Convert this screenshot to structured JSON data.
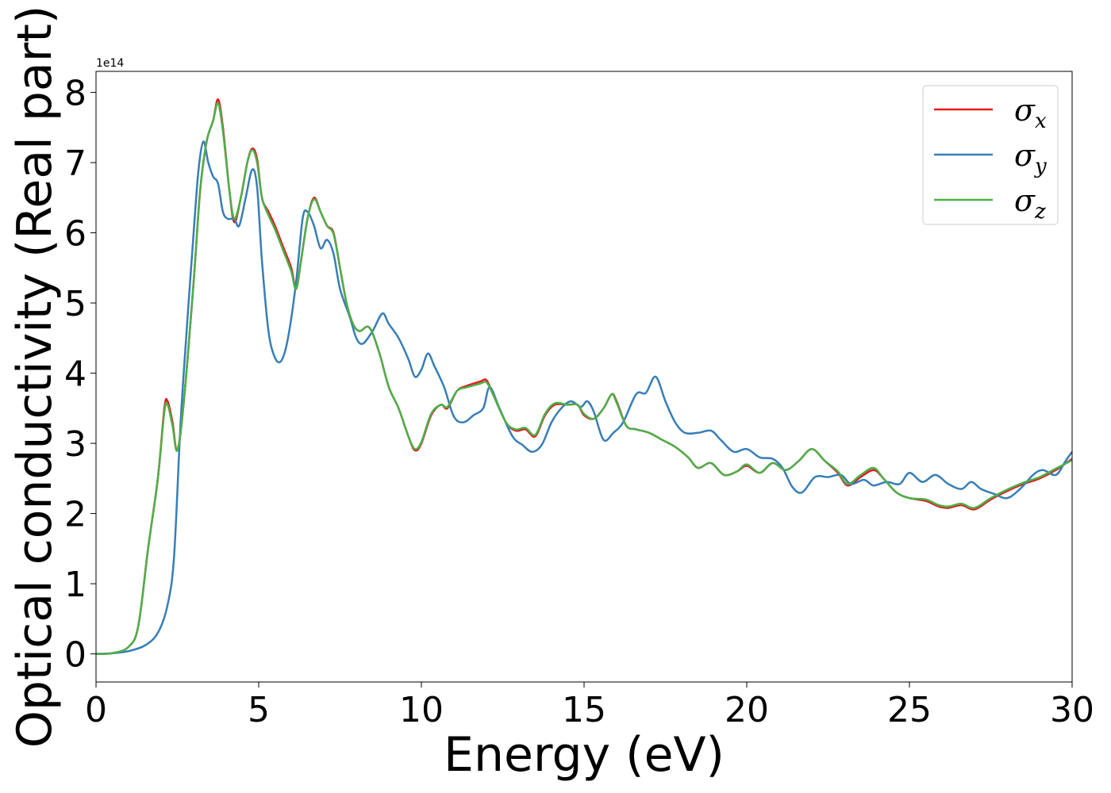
{
  "chart_data": {
    "type": "line",
    "xlabel": "Energy (eV)",
    "ylabel": "Optical conductivity (Real part)",
    "y_offset_text": "1e14",
    "xlim": [
      0,
      30
    ],
    "ylim": [
      -0.4,
      8.3
    ],
    "xticks": [
      "0",
      "5",
      "10",
      "15",
      "20",
      "25",
      "30"
    ],
    "yticks": [
      "0",
      "1",
      "2",
      "3",
      "4",
      "5",
      "6",
      "7",
      "8"
    ],
    "grid": false,
    "legend_position": "top-right",
    "series": [
      {
        "name": "σx",
        "symbol": "σ",
        "subscript": "x",
        "color": "#e41a1c",
        "points": [
          [
            0,
            0
          ],
          [
            0.5,
            0.01
          ],
          [
            1.0,
            0.1
          ],
          [
            1.3,
            0.4
          ],
          [
            1.6,
            1.5
          ],
          [
            1.9,
            2.5
          ],
          [
            2.1,
            3.5
          ],
          [
            2.2,
            3.6
          ],
          [
            2.35,
            3.3
          ],
          [
            2.5,
            2.9
          ],
          [
            2.7,
            3.6
          ],
          [
            3.0,
            5.3
          ],
          [
            3.2,
            6.6
          ],
          [
            3.4,
            7.3
          ],
          [
            3.6,
            7.6
          ],
          [
            3.75,
            7.9
          ],
          [
            3.9,
            7.5
          ],
          [
            4.1,
            6.6
          ],
          [
            4.25,
            6.15
          ],
          [
            4.45,
            6.5
          ],
          [
            4.65,
            7.0
          ],
          [
            4.8,
            7.2
          ],
          [
            4.95,
            7.05
          ],
          [
            5.1,
            6.5
          ],
          [
            5.3,
            6.3
          ],
          [
            5.5,
            6.1
          ],
          [
            5.75,
            5.8
          ],
          [
            6.0,
            5.5
          ],
          [
            6.15,
            5.2
          ],
          [
            6.3,
            5.6
          ],
          [
            6.5,
            6.2
          ],
          [
            6.7,
            6.5
          ],
          [
            6.9,
            6.3
          ],
          [
            7.1,
            6.1
          ],
          [
            7.3,
            6.0
          ],
          [
            7.5,
            5.5
          ],
          [
            7.7,
            5.0
          ],
          [
            7.9,
            4.7
          ],
          [
            8.1,
            4.6
          ],
          [
            8.4,
            4.65
          ],
          [
            8.7,
            4.3
          ],
          [
            9.0,
            3.8
          ],
          [
            9.3,
            3.5
          ],
          [
            9.6,
            3.1
          ],
          [
            9.8,
            2.9
          ],
          [
            10.0,
            3.0
          ],
          [
            10.3,
            3.4
          ],
          [
            10.6,
            3.55
          ],
          [
            10.8,
            3.5
          ],
          [
            11.1,
            3.75
          ],
          [
            11.4,
            3.82
          ],
          [
            11.8,
            3.88
          ],
          [
            12.0,
            3.9
          ],
          [
            12.2,
            3.7
          ],
          [
            12.6,
            3.3
          ],
          [
            12.9,
            3.18
          ],
          [
            13.2,
            3.2
          ],
          [
            13.5,
            3.1
          ],
          [
            13.8,
            3.4
          ],
          [
            14.1,
            3.55
          ],
          [
            14.5,
            3.55
          ],
          [
            14.8,
            3.55
          ],
          [
            15.0,
            3.4
          ],
          [
            15.3,
            3.35
          ],
          [
            15.6,
            3.5
          ],
          [
            15.85,
            3.7
          ],
          [
            16.0,
            3.6
          ],
          [
            16.3,
            3.25
          ],
          [
            16.6,
            3.2
          ],
          [
            17.0,
            3.15
          ],
          [
            17.4,
            3.05
          ],
          [
            17.8,
            2.95
          ],
          [
            18.2,
            2.8
          ],
          [
            18.5,
            2.65
          ],
          [
            18.9,
            2.72
          ],
          [
            19.3,
            2.55
          ],
          [
            19.7,
            2.6
          ],
          [
            20.0,
            2.68
          ],
          [
            20.4,
            2.58
          ],
          [
            20.8,
            2.72
          ],
          [
            21.2,
            2.62
          ],
          [
            21.6,
            2.75
          ],
          [
            22.0,
            2.92
          ],
          [
            22.4,
            2.75
          ],
          [
            22.8,
            2.58
          ],
          [
            23.1,
            2.4
          ],
          [
            23.5,
            2.52
          ],
          [
            23.9,
            2.62
          ],
          [
            24.2,
            2.5
          ],
          [
            24.6,
            2.3
          ],
          [
            25.0,
            2.22
          ],
          [
            25.5,
            2.18
          ],
          [
            25.9,
            2.1
          ],
          [
            26.2,
            2.08
          ],
          [
            26.6,
            2.12
          ],
          [
            27.0,
            2.06
          ],
          [
            27.5,
            2.2
          ],
          [
            28.0,
            2.32
          ],
          [
            28.5,
            2.42
          ],
          [
            29.0,
            2.5
          ],
          [
            29.5,
            2.62
          ],
          [
            30.0,
            2.78
          ]
        ]
      },
      {
        "name": "σy",
        "symbol": "σ",
        "subscript": "y",
        "color": "#377eb8",
        "points": [
          [
            0,
            0
          ],
          [
            0.5,
            0.01
          ],
          [
            1.0,
            0.04
          ],
          [
            1.5,
            0.12
          ],
          [
            1.9,
            0.3
          ],
          [
            2.2,
            0.7
          ],
          [
            2.4,
            1.4
          ],
          [
            2.6,
            3.3
          ],
          [
            2.8,
            4.7
          ],
          [
            3.0,
            6.0
          ],
          [
            3.15,
            6.9
          ],
          [
            3.3,
            7.3
          ],
          [
            3.45,
            7.0
          ],
          [
            3.6,
            6.8
          ],
          [
            3.75,
            6.7
          ],
          [
            3.9,
            6.3
          ],
          [
            4.05,
            6.2
          ],
          [
            4.25,
            6.2
          ],
          [
            4.4,
            6.1
          ],
          [
            4.6,
            6.5
          ],
          [
            4.8,
            6.9
          ],
          [
            4.95,
            6.65
          ],
          [
            5.1,
            5.6
          ],
          [
            5.3,
            4.6
          ],
          [
            5.5,
            4.22
          ],
          [
            5.7,
            4.18
          ],
          [
            5.9,
            4.5
          ],
          [
            6.15,
            5.3
          ],
          [
            6.35,
            6.2
          ],
          [
            6.5,
            6.3
          ],
          [
            6.7,
            6.1
          ],
          [
            6.9,
            5.78
          ],
          [
            7.1,
            5.9
          ],
          [
            7.3,
            5.7
          ],
          [
            7.5,
            5.2
          ],
          [
            7.8,
            4.8
          ],
          [
            8.0,
            4.5
          ],
          [
            8.2,
            4.42
          ],
          [
            8.5,
            4.6
          ],
          [
            8.8,
            4.85
          ],
          [
            9.0,
            4.7
          ],
          [
            9.3,
            4.5
          ],
          [
            9.6,
            4.2
          ],
          [
            9.8,
            3.95
          ],
          [
            10.0,
            4.05
          ],
          [
            10.2,
            4.28
          ],
          [
            10.4,
            4.1
          ],
          [
            10.7,
            3.8
          ],
          [
            11.0,
            3.38
          ],
          [
            11.3,
            3.3
          ],
          [
            11.6,
            3.4
          ],
          [
            11.9,
            3.5
          ],
          [
            12.1,
            3.8
          ],
          [
            12.4,
            3.5
          ],
          [
            12.8,
            3.1
          ],
          [
            13.1,
            2.98
          ],
          [
            13.4,
            2.88
          ],
          [
            13.7,
            2.98
          ],
          [
            14.0,
            3.3
          ],
          [
            14.3,
            3.5
          ],
          [
            14.6,
            3.6
          ],
          [
            14.9,
            3.52
          ],
          [
            15.1,
            3.6
          ],
          [
            15.3,
            3.45
          ],
          [
            15.6,
            3.05
          ],
          [
            15.9,
            3.15
          ],
          [
            16.2,
            3.3
          ],
          [
            16.6,
            3.7
          ],
          [
            16.9,
            3.72
          ],
          [
            17.2,
            3.95
          ],
          [
            17.5,
            3.6
          ],
          [
            17.8,
            3.3
          ],
          [
            18.1,
            3.15
          ],
          [
            18.5,
            3.15
          ],
          [
            18.9,
            3.18
          ],
          [
            19.2,
            3.05
          ],
          [
            19.6,
            2.88
          ],
          [
            20.0,
            2.92
          ],
          [
            20.4,
            2.8
          ],
          [
            20.8,
            2.78
          ],
          [
            21.1,
            2.65
          ],
          [
            21.4,
            2.38
          ],
          [
            21.7,
            2.3
          ],
          [
            22.1,
            2.52
          ],
          [
            22.5,
            2.52
          ],
          [
            22.9,
            2.55
          ],
          [
            23.2,
            2.42
          ],
          [
            23.6,
            2.48
          ],
          [
            23.9,
            2.4
          ],
          [
            24.3,
            2.45
          ],
          [
            24.7,
            2.42
          ],
          [
            25.0,
            2.58
          ],
          [
            25.4,
            2.45
          ],
          [
            25.8,
            2.55
          ],
          [
            26.2,
            2.42
          ],
          [
            26.6,
            2.35
          ],
          [
            26.9,
            2.45
          ],
          [
            27.2,
            2.35
          ],
          [
            27.6,
            2.28
          ],
          [
            28.0,
            2.22
          ],
          [
            28.4,
            2.35
          ],
          [
            28.8,
            2.55
          ],
          [
            29.1,
            2.62
          ],
          [
            29.5,
            2.55
          ],
          [
            29.8,
            2.75
          ],
          [
            30.0,
            2.88
          ]
        ]
      },
      {
        "name": "σz",
        "symbol": "σ",
        "subscript": "z",
        "color": "#4daf4a",
        "points": [
          [
            0,
            0
          ],
          [
            0.5,
            0.01
          ],
          [
            1.0,
            0.1
          ],
          [
            1.3,
            0.4
          ],
          [
            1.6,
            1.5
          ],
          [
            1.9,
            2.5
          ],
          [
            2.1,
            3.45
          ],
          [
            2.2,
            3.55
          ],
          [
            2.35,
            3.25
          ],
          [
            2.5,
            2.9
          ],
          [
            2.7,
            3.6
          ],
          [
            3.0,
            5.3
          ],
          [
            3.2,
            6.6
          ],
          [
            3.4,
            7.3
          ],
          [
            3.6,
            7.6
          ],
          [
            3.75,
            7.85
          ],
          [
            3.9,
            7.45
          ],
          [
            4.1,
            6.6
          ],
          [
            4.25,
            6.2
          ],
          [
            4.45,
            6.5
          ],
          [
            4.65,
            7.0
          ],
          [
            4.8,
            7.18
          ],
          [
            4.95,
            7.0
          ],
          [
            5.1,
            6.5
          ],
          [
            5.3,
            6.25
          ],
          [
            5.5,
            6.05
          ],
          [
            5.75,
            5.75
          ],
          [
            6.0,
            5.45
          ],
          [
            6.15,
            5.2
          ],
          [
            6.3,
            5.6
          ],
          [
            6.5,
            6.2
          ],
          [
            6.7,
            6.48
          ],
          [
            6.9,
            6.3
          ],
          [
            7.1,
            6.1
          ],
          [
            7.3,
            5.98
          ],
          [
            7.5,
            5.5
          ],
          [
            7.7,
            5.0
          ],
          [
            7.9,
            4.7
          ],
          [
            8.1,
            4.6
          ],
          [
            8.4,
            4.65
          ],
          [
            8.7,
            4.3
          ],
          [
            9.0,
            3.8
          ],
          [
            9.3,
            3.5
          ],
          [
            9.6,
            3.1
          ],
          [
            9.8,
            2.92
          ],
          [
            10.0,
            3.02
          ],
          [
            10.3,
            3.42
          ],
          [
            10.6,
            3.55
          ],
          [
            10.8,
            3.52
          ],
          [
            11.1,
            3.75
          ],
          [
            11.4,
            3.8
          ],
          [
            11.8,
            3.85
          ],
          [
            12.0,
            3.87
          ],
          [
            12.2,
            3.7
          ],
          [
            12.6,
            3.3
          ],
          [
            12.9,
            3.2
          ],
          [
            13.2,
            3.22
          ],
          [
            13.5,
            3.12
          ],
          [
            13.8,
            3.42
          ],
          [
            14.1,
            3.57
          ],
          [
            14.5,
            3.55
          ],
          [
            14.8,
            3.55
          ],
          [
            15.0,
            3.42
          ],
          [
            15.3,
            3.35
          ],
          [
            15.6,
            3.5
          ],
          [
            15.85,
            3.7
          ],
          [
            16.0,
            3.58
          ],
          [
            16.3,
            3.25
          ],
          [
            16.6,
            3.2
          ],
          [
            17.0,
            3.15
          ],
          [
            17.4,
            3.05
          ],
          [
            17.8,
            2.95
          ],
          [
            18.2,
            2.8
          ],
          [
            18.5,
            2.65
          ],
          [
            18.9,
            2.72
          ],
          [
            19.3,
            2.55
          ],
          [
            19.7,
            2.6
          ],
          [
            20.0,
            2.7
          ],
          [
            20.4,
            2.58
          ],
          [
            20.8,
            2.72
          ],
          [
            21.2,
            2.62
          ],
          [
            21.6,
            2.75
          ],
          [
            22.0,
            2.92
          ],
          [
            22.4,
            2.75
          ],
          [
            22.8,
            2.6
          ],
          [
            23.1,
            2.42
          ],
          [
            23.5,
            2.55
          ],
          [
            23.9,
            2.65
          ],
          [
            24.2,
            2.5
          ],
          [
            24.6,
            2.3
          ],
          [
            25.0,
            2.22
          ],
          [
            25.5,
            2.2
          ],
          [
            25.9,
            2.12
          ],
          [
            26.2,
            2.1
          ],
          [
            26.6,
            2.14
          ],
          [
            27.0,
            2.08
          ],
          [
            27.5,
            2.22
          ],
          [
            28.0,
            2.34
          ],
          [
            28.5,
            2.44
          ],
          [
            29.0,
            2.52
          ],
          [
            29.5,
            2.64
          ],
          [
            30.0,
            2.76
          ]
        ]
      }
    ]
  }
}
